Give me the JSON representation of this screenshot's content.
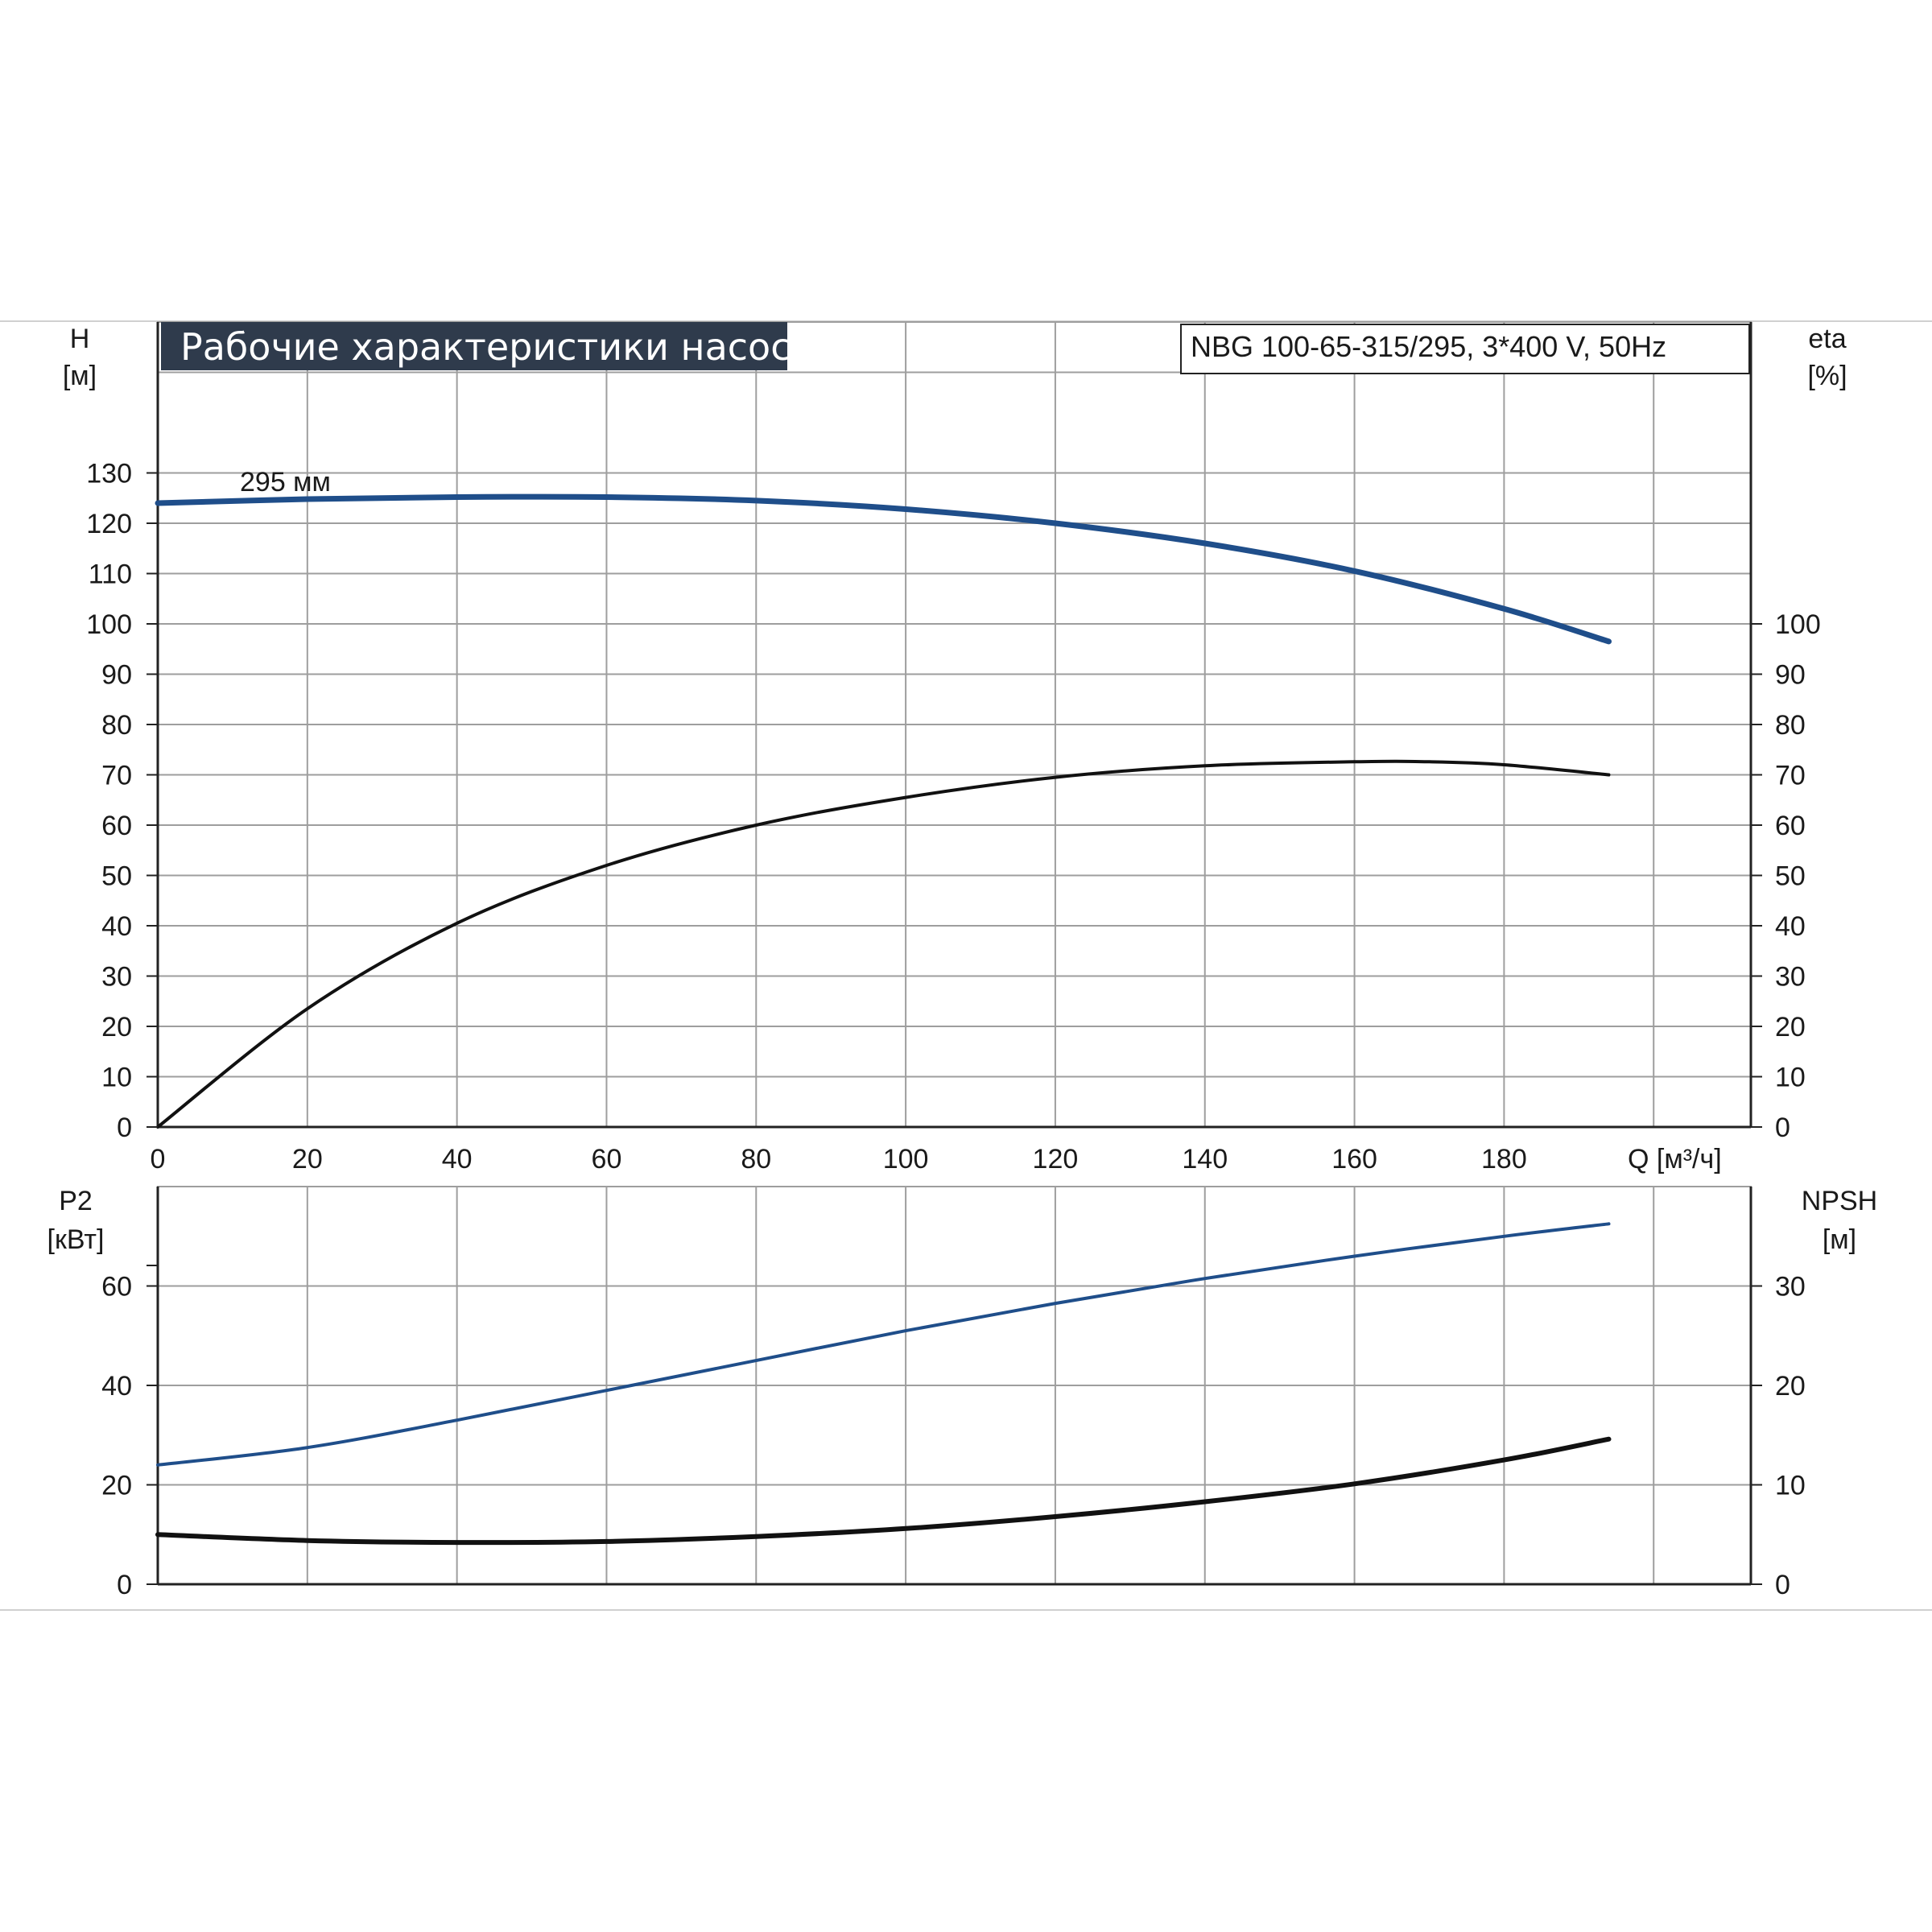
{
  "header": {
    "title": "Рабочие характеристики насоса",
    "model": "NBG 100-65-315/295, 3*400 V, 50Hz"
  },
  "colors": {
    "title_bg": "#2f3b4c",
    "grid": "#9e9e9e",
    "blue_curve": "#1f4e8a",
    "black_curve": "#111111",
    "separator": "#d0d0d0"
  },
  "chart_data": [
    {
      "type": "line",
      "panel": "upper",
      "xlabel": "Q [м³/ч]",
      "x_ticks": [
        "0",
        "20",
        "40",
        "60",
        "80",
        "100",
        "120",
        "140",
        "160",
        "180"
      ],
      "xlim": [
        0,
        213
      ],
      "left_axis": {
        "label": "H",
        "unit": "[м]",
        "ticks": [
          "0",
          "10",
          "20",
          "30",
          "40",
          "50",
          "60",
          "70",
          "80",
          "90",
          "100",
          "110",
          "120",
          "130"
        ],
        "ylim": [
          0,
          160
        ]
      },
      "right_axis": {
        "label": "eta",
        "unit": "[%]",
        "ticks": [
          "0",
          "10",
          "20",
          "30",
          "40",
          "50",
          "60",
          "70",
          "80",
          "90",
          "100"
        ],
        "ylim": [
          0,
          160
        ]
      },
      "grid": true,
      "series": [
        {
          "name": "295 мм",
          "axis": "left",
          "color": "#1f4e8a",
          "x": [
            0,
            20,
            40,
            60,
            80,
            100,
            120,
            140,
            160,
            180,
            194
          ],
          "y": [
            124,
            124.8,
            125.2,
            125.2,
            124.5,
            122.8,
            120,
            116,
            110.5,
            103,
            96.5
          ]
        },
        {
          "axis": "right",
          "color": "#111111",
          "x": [
            0,
            20,
            40,
            60,
            80,
            100,
            120,
            140,
            160,
            170,
            180,
            194
          ],
          "y": [
            0,
            23.5,
            40.5,
            52,
            60,
            65.5,
            69.5,
            71.8,
            72.6,
            72.6,
            72,
            70
          ]
        }
      ]
    },
    {
      "type": "line",
      "panel": "lower",
      "left_axis": {
        "label": "P2",
        "unit": "[кВт]",
        "ticks": [
          "0",
          "20",
          "40",
          "60"
        ],
        "ylim": [
          0,
          80
        ]
      },
      "right_axis": {
        "label": "NPSH",
        "unit": "[м]",
        "ticks": [
          "0",
          "10",
          "20",
          "30"
        ],
        "ylim": [
          0,
          40
        ]
      },
      "xlim": [
        0,
        213
      ],
      "grid": true,
      "series": [
        {
          "axis": "left",
          "color": "#1f4e8a",
          "x": [
            0,
            20,
            40,
            60,
            80,
            100,
            120,
            140,
            160,
            180,
            194
          ],
          "y": [
            24,
            27.5,
            33,
            39,
            45,
            51,
            56.5,
            61.5,
            66,
            70,
            72.5
          ]
        },
        {
          "axis": "right",
          "color": "#111111",
          "x": [
            0,
            20,
            40,
            60,
            80,
            100,
            120,
            140,
            160,
            180,
            194
          ],
          "y": [
            5,
            4.4,
            4.2,
            4.3,
            4.8,
            5.6,
            6.8,
            8.3,
            10.1,
            12.5,
            14.6
          ]
        }
      ]
    }
  ]
}
